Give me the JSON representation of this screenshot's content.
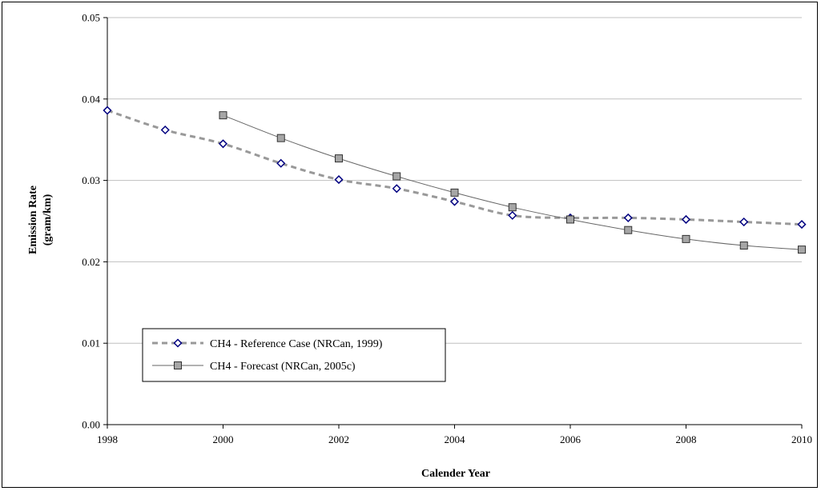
{
  "chart_data": {
    "type": "line",
    "title": "",
    "xlabel": "Calender Year",
    "ylabel": [
      "Emission Rate",
      "(gram/km)"
    ],
    "xlim": [
      1998,
      2010
    ],
    "ylim": [
      0,
      0.05
    ],
    "xticks": [
      1998,
      2000,
      2002,
      2004,
      2006,
      2008,
      2010
    ],
    "yticks": [
      0.0,
      0.01,
      0.02,
      0.03,
      0.04,
      0.05
    ],
    "ytick_labels": [
      "0.00",
      "0.01",
      "0.02",
      "0.03",
      "0.04",
      "0.05"
    ],
    "grid": "horizontal",
    "legend_position": "lower-left",
    "series": [
      {
        "name": "CH4 - Reference Case (NRCan, 1999)",
        "marker": "diamond",
        "line_style": "dashed",
        "line_color": "#999999",
        "marker_color": "#000080",
        "x": [
          1998,
          1999,
          2000,
          2001,
          2002,
          2003,
          2004,
          2005,
          2006,
          2007,
          2008,
          2009,
          2010
        ],
        "values": [
          0.0386,
          0.0362,
          0.0345,
          0.0321,
          0.0301,
          0.029,
          0.0274,
          0.0257,
          0.0254,
          0.0254,
          0.0252,
          0.0249,
          0.0246
        ]
      },
      {
        "name": "CH4 - Forecast (NRCan, 2005c)",
        "marker": "square",
        "line_style": "solid",
        "line_color": "#666666",
        "marker_color": "#a6a6a6",
        "x": [
          2000,
          2001,
          2002,
          2003,
          2004,
          2005,
          2006,
          2007,
          2008,
          2009,
          2010
        ],
        "values": [
          0.038,
          0.0352,
          0.0327,
          0.0305,
          0.0285,
          0.0267,
          0.0252,
          0.0239,
          0.0228,
          0.022,
          0.0215
        ]
      }
    ]
  }
}
